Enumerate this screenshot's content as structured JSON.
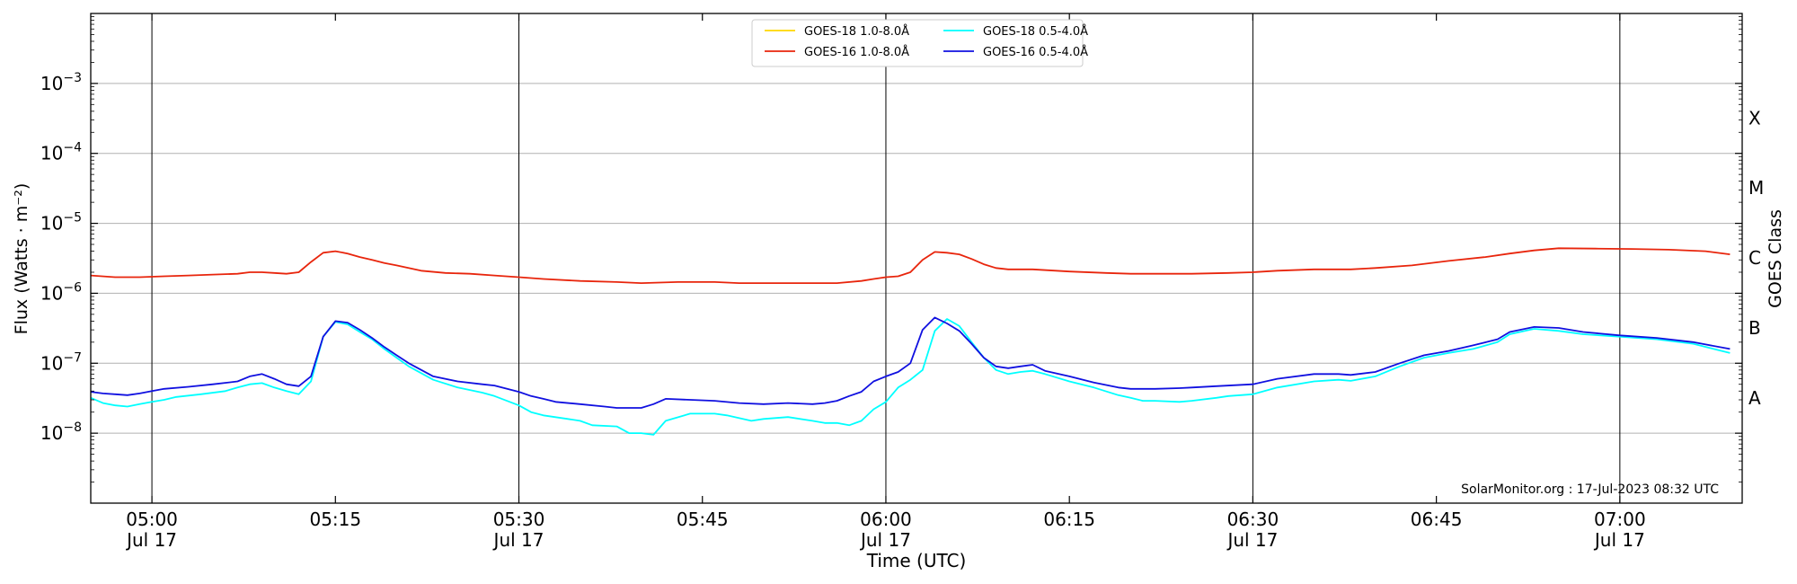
{
  "chart_data": {
    "type": "line",
    "xlabel": "Time (UTC)",
    "ylabel": "Flux (Watts · m⁻²)",
    "ylabel_right": "GOES Class",
    "y_scale": "log",
    "ylim": [
      1e-09,
      0.01
    ],
    "xlim": [
      "2023-07-17 04:55",
      "2023-07-17 07:10"
    ],
    "grid": "horizontal",
    "legend_position": "top-center",
    "annotation": "SolarMonitor.org : 17-Jul-2023 08:32 UTC",
    "y_ticks": [
      {
        "value": 1e-08,
        "base": "10",
        "exp": "−8"
      },
      {
        "value": 1e-07,
        "base": "10",
        "exp": "−7"
      },
      {
        "value": 1e-06,
        "base": "10",
        "exp": "−6"
      },
      {
        "value": 1e-05,
        "base": "10",
        "exp": "−5"
      },
      {
        "value": 0.0001,
        "base": "10",
        "exp": "−4"
      },
      {
        "value": 0.001,
        "base": "10",
        "exp": "−3"
      }
    ],
    "x_ticks": [
      {
        "time": "05:00",
        "label": "05:00",
        "sublabel": "Jul 17",
        "vline": true
      },
      {
        "time": "05:15",
        "label": "05:15",
        "sublabel": "",
        "vline": false
      },
      {
        "time": "05:30",
        "label": "05:30",
        "sublabel": "Jul 17",
        "vline": true
      },
      {
        "time": "05:45",
        "label": "05:45",
        "sublabel": "",
        "vline": false
      },
      {
        "time": "06:00",
        "label": "06:00",
        "sublabel": "Jul 17",
        "vline": true
      },
      {
        "time": "06:15",
        "label": "06:15",
        "sublabel": "",
        "vline": false
      },
      {
        "time": "06:30",
        "label": "06:30",
        "sublabel": "Jul 17",
        "vline": true
      },
      {
        "time": "06:45",
        "label": "06:45",
        "sublabel": "",
        "vline": false
      },
      {
        "time": "07:00",
        "label": "07:00",
        "sublabel": "Jul 17",
        "vline": true
      }
    ],
    "goes_classes": [
      {
        "label": "A",
        "value": 3.2e-08
      },
      {
        "label": "B",
        "value": 3.2e-07
      },
      {
        "label": "C",
        "value": 3.2e-06
      },
      {
        "label": "M",
        "value": 3.2e-05
      },
      {
        "label": "X",
        "value": 0.00032
      }
    ],
    "series": [
      {
        "name": "GOES-18 1.0-8.0Å",
        "color": "#ffd700",
        "x": [],
        "y": []
      },
      {
        "name": "GOES-16 1.0-8.0Å",
        "color": "#e8250c",
        "x": [
          "04:55",
          "04:57",
          "04:59",
          "05:01",
          "05:03",
          "05:05",
          "05:07",
          "05:08",
          "05:09",
          "05:10",
          "05:11",
          "05:12",
          "05:13",
          "05:14",
          "05:15",
          "05:16",
          "05:17",
          "05:18",
          "05:19",
          "05:20",
          "05:22",
          "05:24",
          "05:26",
          "05:28",
          "05:30",
          "05:32",
          "05:35",
          "05:38",
          "05:40",
          "05:43",
          "05:46",
          "05:48",
          "05:50",
          "05:53",
          "05:56",
          "05:58",
          "05:59",
          "06:00",
          "06:01",
          "06:02",
          "06:03",
          "06:04",
          "06:05",
          "06:06",
          "06:07",
          "06:08",
          "06:09",
          "06:10",
          "06:12",
          "06:15",
          "06:18",
          "06:20",
          "06:25",
          "06:28",
          "06:30",
          "06:32",
          "06:35",
          "06:38",
          "06:40",
          "06:43",
          "06:46",
          "06:49",
          "06:51",
          "06:53",
          "06:55",
          "06:58",
          "07:01",
          "07:04",
          "07:07",
          "07:09"
        ],
        "y": [
          1.8e-06,
          1.7e-06,
          1.7e-06,
          1.75e-06,
          1.8e-06,
          1.85e-06,
          1.9e-06,
          2e-06,
          2e-06,
          1.95e-06,
          1.9e-06,
          2e-06,
          2.8e-06,
          3.8e-06,
          4e-06,
          3.7e-06,
          3.3e-06,
          3e-06,
          2.7e-06,
          2.5e-06,
          2.1e-06,
          1.95e-06,
          1.9e-06,
          1.8e-06,
          1.7e-06,
          1.6e-06,
          1.5e-06,
          1.45e-06,
          1.4e-06,
          1.45e-06,
          1.45e-06,
          1.4e-06,
          1.4e-06,
          1.4e-06,
          1.4e-06,
          1.5e-06,
          1.6e-06,
          1.7e-06,
          1.75e-06,
          2e-06,
          3e-06,
          3.9e-06,
          3.8e-06,
          3.6e-06,
          3.1e-06,
          2.6e-06,
          2.3e-06,
          2.2e-06,
          2.2e-06,
          2.05e-06,
          1.95e-06,
          1.9e-06,
          1.9e-06,
          1.95e-06,
          2e-06,
          2.1e-06,
          2.2e-06,
          2.2e-06,
          2.3e-06,
          2.5e-06,
          2.9e-06,
          3.3e-06,
          3.7e-06,
          4.1e-06,
          4.4e-06,
          4.35e-06,
          4.3e-06,
          4.2e-06,
          4e-06,
          3.6e-06
        ]
      },
      {
        "name": "GOES-18 0.5-4.0Å",
        "color": "#00ffff",
        "x": [
          "04:55",
          "04:56",
          "04:57",
          "04:58",
          "04:59",
          "05:00",
          "05:01",
          "05:02",
          "05:04",
          "05:06",
          "05:07",
          "05:08",
          "05:09",
          "05:10",
          "05:11",
          "05:12",
          "05:13",
          "05:14",
          "05:15",
          "05:16",
          "05:17",
          "05:18",
          "05:19",
          "05:20",
          "05:21",
          "05:23",
          "05:25",
          "05:27",
          "05:28",
          "05:30",
          "05:31",
          "05:32",
          "05:34",
          "05:35",
          "05:36",
          "05:38",
          "05:39",
          "05:40",
          "05:41",
          "05:42",
          "05:44",
          "05:46",
          "05:47",
          "05:49",
          "05:50",
          "05:52",
          "05:54",
          "05:55",
          "05:56",
          "05:57",
          "05:58",
          "05:59",
          "06:00",
          "06:01",
          "06:02",
          "06:03",
          "06:04",
          "06:05",
          "06:06",
          "06:07",
          "06:08",
          "06:09",
          "06:10",
          "06:11",
          "06:12",
          "06:13",
          "06:15",
          "06:17",
          "06:19",
          "06:20",
          "06:21",
          "06:22",
          "06:24",
          "06:25",
          "06:27",
          "06:28",
          "06:30",
          "06:32",
          "06:35",
          "06:37",
          "06:38",
          "06:40",
          "06:42",
          "06:44",
          "06:46",
          "06:48",
          "06:50",
          "06:51",
          "06:53",
          "06:55",
          "06:57",
          "07:00",
          "07:03",
          "07:06",
          "07:09"
        ],
        "y": [
          3.2e-08,
          2.7e-08,
          2.5e-08,
          2.4e-08,
          2.6e-08,
          2.8e-08,
          3e-08,
          3.3e-08,
          3.6e-08,
          4e-08,
          4.5e-08,
          5e-08,
          5.2e-08,
          4.5e-08,
          4e-08,
          3.6e-08,
          5.5e-08,
          2.4e-07,
          3.9e-07,
          3.6e-07,
          2.8e-07,
          2.2e-07,
          1.6e-07,
          1.2e-07,
          9e-08,
          5.8e-08,
          4.5e-08,
          3.8e-08,
          3.4e-08,
          2.5e-08,
          2e-08,
          1.8e-08,
          1.6e-08,
          1.5e-08,
          1.3e-08,
          1.25e-08,
          1e-08,
          1e-08,
          9.5e-09,
          1.5e-08,
          1.9e-08,
          1.9e-08,
          1.8e-08,
          1.5e-08,
          1.6e-08,
          1.7e-08,
          1.5e-08,
          1.4e-08,
          1.4e-08,
          1.3e-08,
          1.5e-08,
          2.2e-08,
          2.8e-08,
          4.5e-08,
          5.8e-08,
          8e-08,
          2.9e-07,
          4.3e-07,
          3.4e-07,
          2e-07,
          1.2e-07,
          8e-08,
          7e-08,
          7.5e-08,
          7.8e-08,
          7e-08,
          5.5e-08,
          4.5e-08,
          3.5e-08,
          3.2e-08,
          2.9e-08,
          2.9e-08,
          2.8e-08,
          2.9e-08,
          3.2e-08,
          3.4e-08,
          3.6e-08,
          4.5e-08,
          5.5e-08,
          5.8e-08,
          5.6e-08,
          6.5e-08,
          9e-08,
          1.2e-07,
          1.4e-07,
          1.6e-07,
          2e-07,
          2.6e-07,
          3.1e-07,
          2.9e-07,
          2.6e-07,
          2.4e-07,
          2.2e-07,
          1.9e-07,
          1.4e-07
        ]
      },
      {
        "name": "GOES-16 0.5-4.0Å",
        "color": "#1010e0",
        "x": [
          "04:55",
          "04:56",
          "04:57",
          "04:58",
          "04:59",
          "05:00",
          "05:01",
          "05:03",
          "05:05",
          "05:07",
          "05:08",
          "05:09",
          "05:10",
          "05:11",
          "05:12",
          "05:13",
          "05:14",
          "05:15",
          "05:16",
          "05:17",
          "05:18",
          "05:19",
          "05:20",
          "05:21",
          "05:23",
          "05:25",
          "05:27",
          "05:28",
          "05:30",
          "05:31",
          "05:32",
          "05:33",
          "05:35",
          "05:37",
          "05:38",
          "05:40",
          "05:41",
          "05:42",
          "05:44",
          "05:46",
          "05:48",
          "05:50",
          "05:52",
          "05:54",
          "05:55",
          "05:56",
          "05:57",
          "05:58",
          "05:59",
          "06:00",
          "06:01",
          "06:02",
          "06:03",
          "06:04",
          "06:05",
          "06:06",
          "06:07",
          "06:08",
          "06:09",
          "06:10",
          "06:11",
          "06:12",
          "06:13",
          "06:15",
          "06:17",
          "06:19",
          "06:20",
          "06:22",
          "06:24",
          "06:25",
          "06:27",
          "06:30",
          "06:32",
          "06:35",
          "06:37",
          "06:38",
          "06:40",
          "06:42",
          "06:44",
          "06:46",
          "06:48",
          "06:50",
          "06:51",
          "06:53",
          "06:55",
          "06:57",
          "07:00",
          "07:03",
          "07:06",
          "07:09"
        ],
        "y": [
          3.9e-08,
          3.7e-08,
          3.6e-08,
          3.5e-08,
          3.7e-08,
          4e-08,
          4.3e-08,
          4.6e-08,
          5e-08,
          5.5e-08,
          6.5e-08,
          7e-08,
          6e-08,
          5e-08,
          4.7e-08,
          6.5e-08,
          2.4e-07,
          4e-07,
          3.8e-07,
          3e-07,
          2.3e-07,
          1.7e-07,
          1.3e-07,
          1e-07,
          6.5e-08,
          5.5e-08,
          5e-08,
          4.8e-08,
          3.9e-08,
          3.4e-08,
          3.1e-08,
          2.8e-08,
          2.6e-08,
          2.4e-08,
          2.3e-08,
          2.3e-08,
          2.6e-08,
          3.1e-08,
          3e-08,
          2.9e-08,
          2.7e-08,
          2.6e-08,
          2.7e-08,
          2.6e-08,
          2.7e-08,
          2.9e-08,
          3.4e-08,
          3.9e-08,
          5.5e-08,
          6.5e-08,
          7.5e-08,
          1e-07,
          3e-07,
          4.5e-07,
          3.7e-07,
          2.9e-07,
          1.9e-07,
          1.2e-07,
          9e-08,
          8.5e-08,
          9e-08,
          9.5e-08,
          7.8e-08,
          6.5e-08,
          5.3e-08,
          4.5e-08,
          4.3e-08,
          4.3e-08,
          4.4e-08,
          4.5e-08,
          4.7e-08,
          5e-08,
          6e-08,
          7e-08,
          7e-08,
          6.8e-08,
          7.5e-08,
          1e-07,
          1.3e-07,
          1.5e-07,
          1.8e-07,
          2.2e-07,
          2.8e-07,
          3.3e-07,
          3.2e-07,
          2.8e-07,
          2.5e-07,
          2.3e-07,
          2e-07,
          1.6e-07
        ]
      }
    ]
  }
}
